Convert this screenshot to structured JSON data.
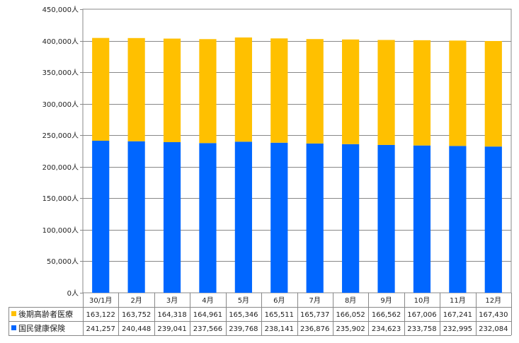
{
  "chart_data": {
    "type": "bar",
    "stacked": true,
    "title": "",
    "xlabel": "",
    "ylabel": "",
    "ylim": [
      0,
      450000
    ],
    "y_tick_step": 50000,
    "y_tick_labels": [
      "0人",
      "50,000人",
      "100,000人",
      "150,000人",
      "200,000人",
      "250,000人",
      "300,000人",
      "350,000人",
      "400,000人",
      "450,000人"
    ],
    "grid": true,
    "legend": "data-table",
    "categories": [
      "30/1月",
      "2月",
      "3月",
      "4月",
      "5月",
      "6月",
      "7月",
      "8月",
      "9月",
      "10月",
      "11月",
      "12月"
    ],
    "series": [
      {
        "name": "国民健康保険",
        "color": "#0066ff",
        "values": [
          241257,
          240448,
          239041,
          237566,
          239768,
          238141,
          236876,
          235902,
          234623,
          233758,
          232995,
          232084
        ],
        "labels": [
          "241,257",
          "240,448",
          "239,041",
          "237,566",
          "239,768",
          "238,141",
          "236,876",
          "235,902",
          "234,623",
          "233,758",
          "232,995",
          "232,084"
        ]
      },
      {
        "name": "後期高齢者医療",
        "color": "#ffc000",
        "values": [
          163122,
          163752,
          164318,
          164961,
          165346,
          165511,
          165737,
          166052,
          166562,
          167006,
          167241,
          167430
        ],
        "labels": [
          "163,122",
          "163,752",
          "164,318",
          "164,961",
          "165,346",
          "165,511",
          "165,737",
          "166,052",
          "166,562",
          "167,006",
          "167,241",
          "167,430"
        ]
      }
    ],
    "table_row_order": [
      1,
      0
    ]
  }
}
